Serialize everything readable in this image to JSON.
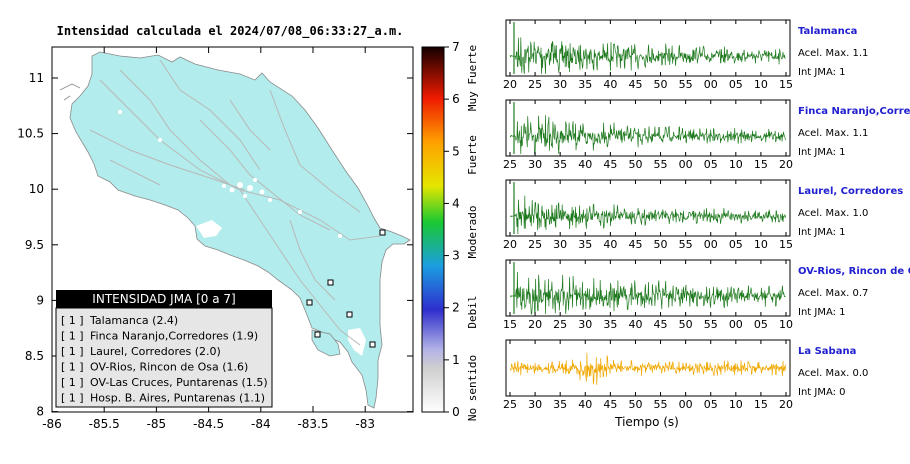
{
  "map": {
    "title": "Intensidad calculada el 2024/07/08_06:33:27_a.m.",
    "lat_ticks": [
      "11",
      "10.5",
      "10",
      "9.5",
      "9",
      "8.5",
      "8"
    ],
    "lon_ticks": [
      "-86",
      "-85.5",
      "-85",
      "-84.5",
      "-84",
      "-83.5",
      "-83"
    ],
    "colors": {
      "land": "#b3ecec",
      "sea": "#ffffff",
      "roads": "#b8b8b8"
    }
  },
  "colorbar": {
    "ticks": [
      "0",
      "1",
      "2",
      "3",
      "4",
      "5",
      "6",
      "7"
    ],
    "labels": [
      "No sentido",
      "Debil",
      "Moderado",
      "Fuerte",
      "Muy Fuerte"
    ]
  },
  "legend": {
    "header": "INTENSIDAD JMA [0 a 7]",
    "items": [
      {
        "badge": "[ 1 ]",
        "label": "Talamanca (2.4)"
      },
      {
        "badge": "[ 1 ]",
        "label": "Finca Naranjo,Corredores (1.9)"
      },
      {
        "badge": "[ 1 ]",
        "label": "Laurel, Corredores (2.0)"
      },
      {
        "badge": "[ 1 ]",
        "label": "OV-Rios, Rincon de Osa (1.6)"
      },
      {
        "badge": "[ 1 ]",
        "label": "OV-Las Cruces, Puntarenas (1.5)"
      },
      {
        "badge": "[ 1 ]",
        "label": "Hosp. B. Aires, Puntarenas (1.1)"
      }
    ]
  },
  "traces": [
    {
      "station": "Talamanca",
      "accel": "Acel. Max. 1.1",
      "jma": "Int JMA: 1",
      "color": "#1f7a1f",
      "ticks": [
        "20",
        "25",
        "30",
        "35",
        "40",
        "45",
        "50",
        "55",
        "00",
        "05",
        "10",
        "15"
      ]
    },
    {
      "station": "Finca Naranjo,Corredores",
      "accel": "Acel. Max. 1.1",
      "jma": "Int JMA: 1",
      "color": "#1f7a1f",
      "ticks": [
        "25",
        "30",
        "35",
        "40",
        "45",
        "50",
        "55",
        "00",
        "05",
        "10",
        "15",
        "20"
      ]
    },
    {
      "station": "Laurel, Corredores",
      "accel": "Acel. Max. 1.0",
      "jma": "Int JMA: 1",
      "color": "#1f7a1f",
      "ticks": [
        "20",
        "25",
        "30",
        "35",
        "40",
        "45",
        "50",
        "55",
        "00",
        "05",
        "10",
        "15"
      ]
    },
    {
      "station": "OV-Rios, Rincon de Osa",
      "accel": "Acel. Max. 0.7",
      "jma": "Int JMA: 1",
      "color": "#1f7a1f",
      "ticks": [
        "15",
        "20",
        "25",
        "30",
        "35",
        "40",
        "45",
        "50",
        "55",
        "00",
        "05",
        "10"
      ]
    },
    {
      "station": "La Sabana",
      "accel": "Acel. Max. 0.0",
      "jma": "Int JMA: 0",
      "color": "#f0a800",
      "ticks": [
        "25",
        "30",
        "35",
        "40",
        "45",
        "50",
        "55",
        "00",
        "05",
        "10",
        "15",
        "20"
      ]
    }
  ],
  "xaxis_label": "Tiempo (s)"
}
